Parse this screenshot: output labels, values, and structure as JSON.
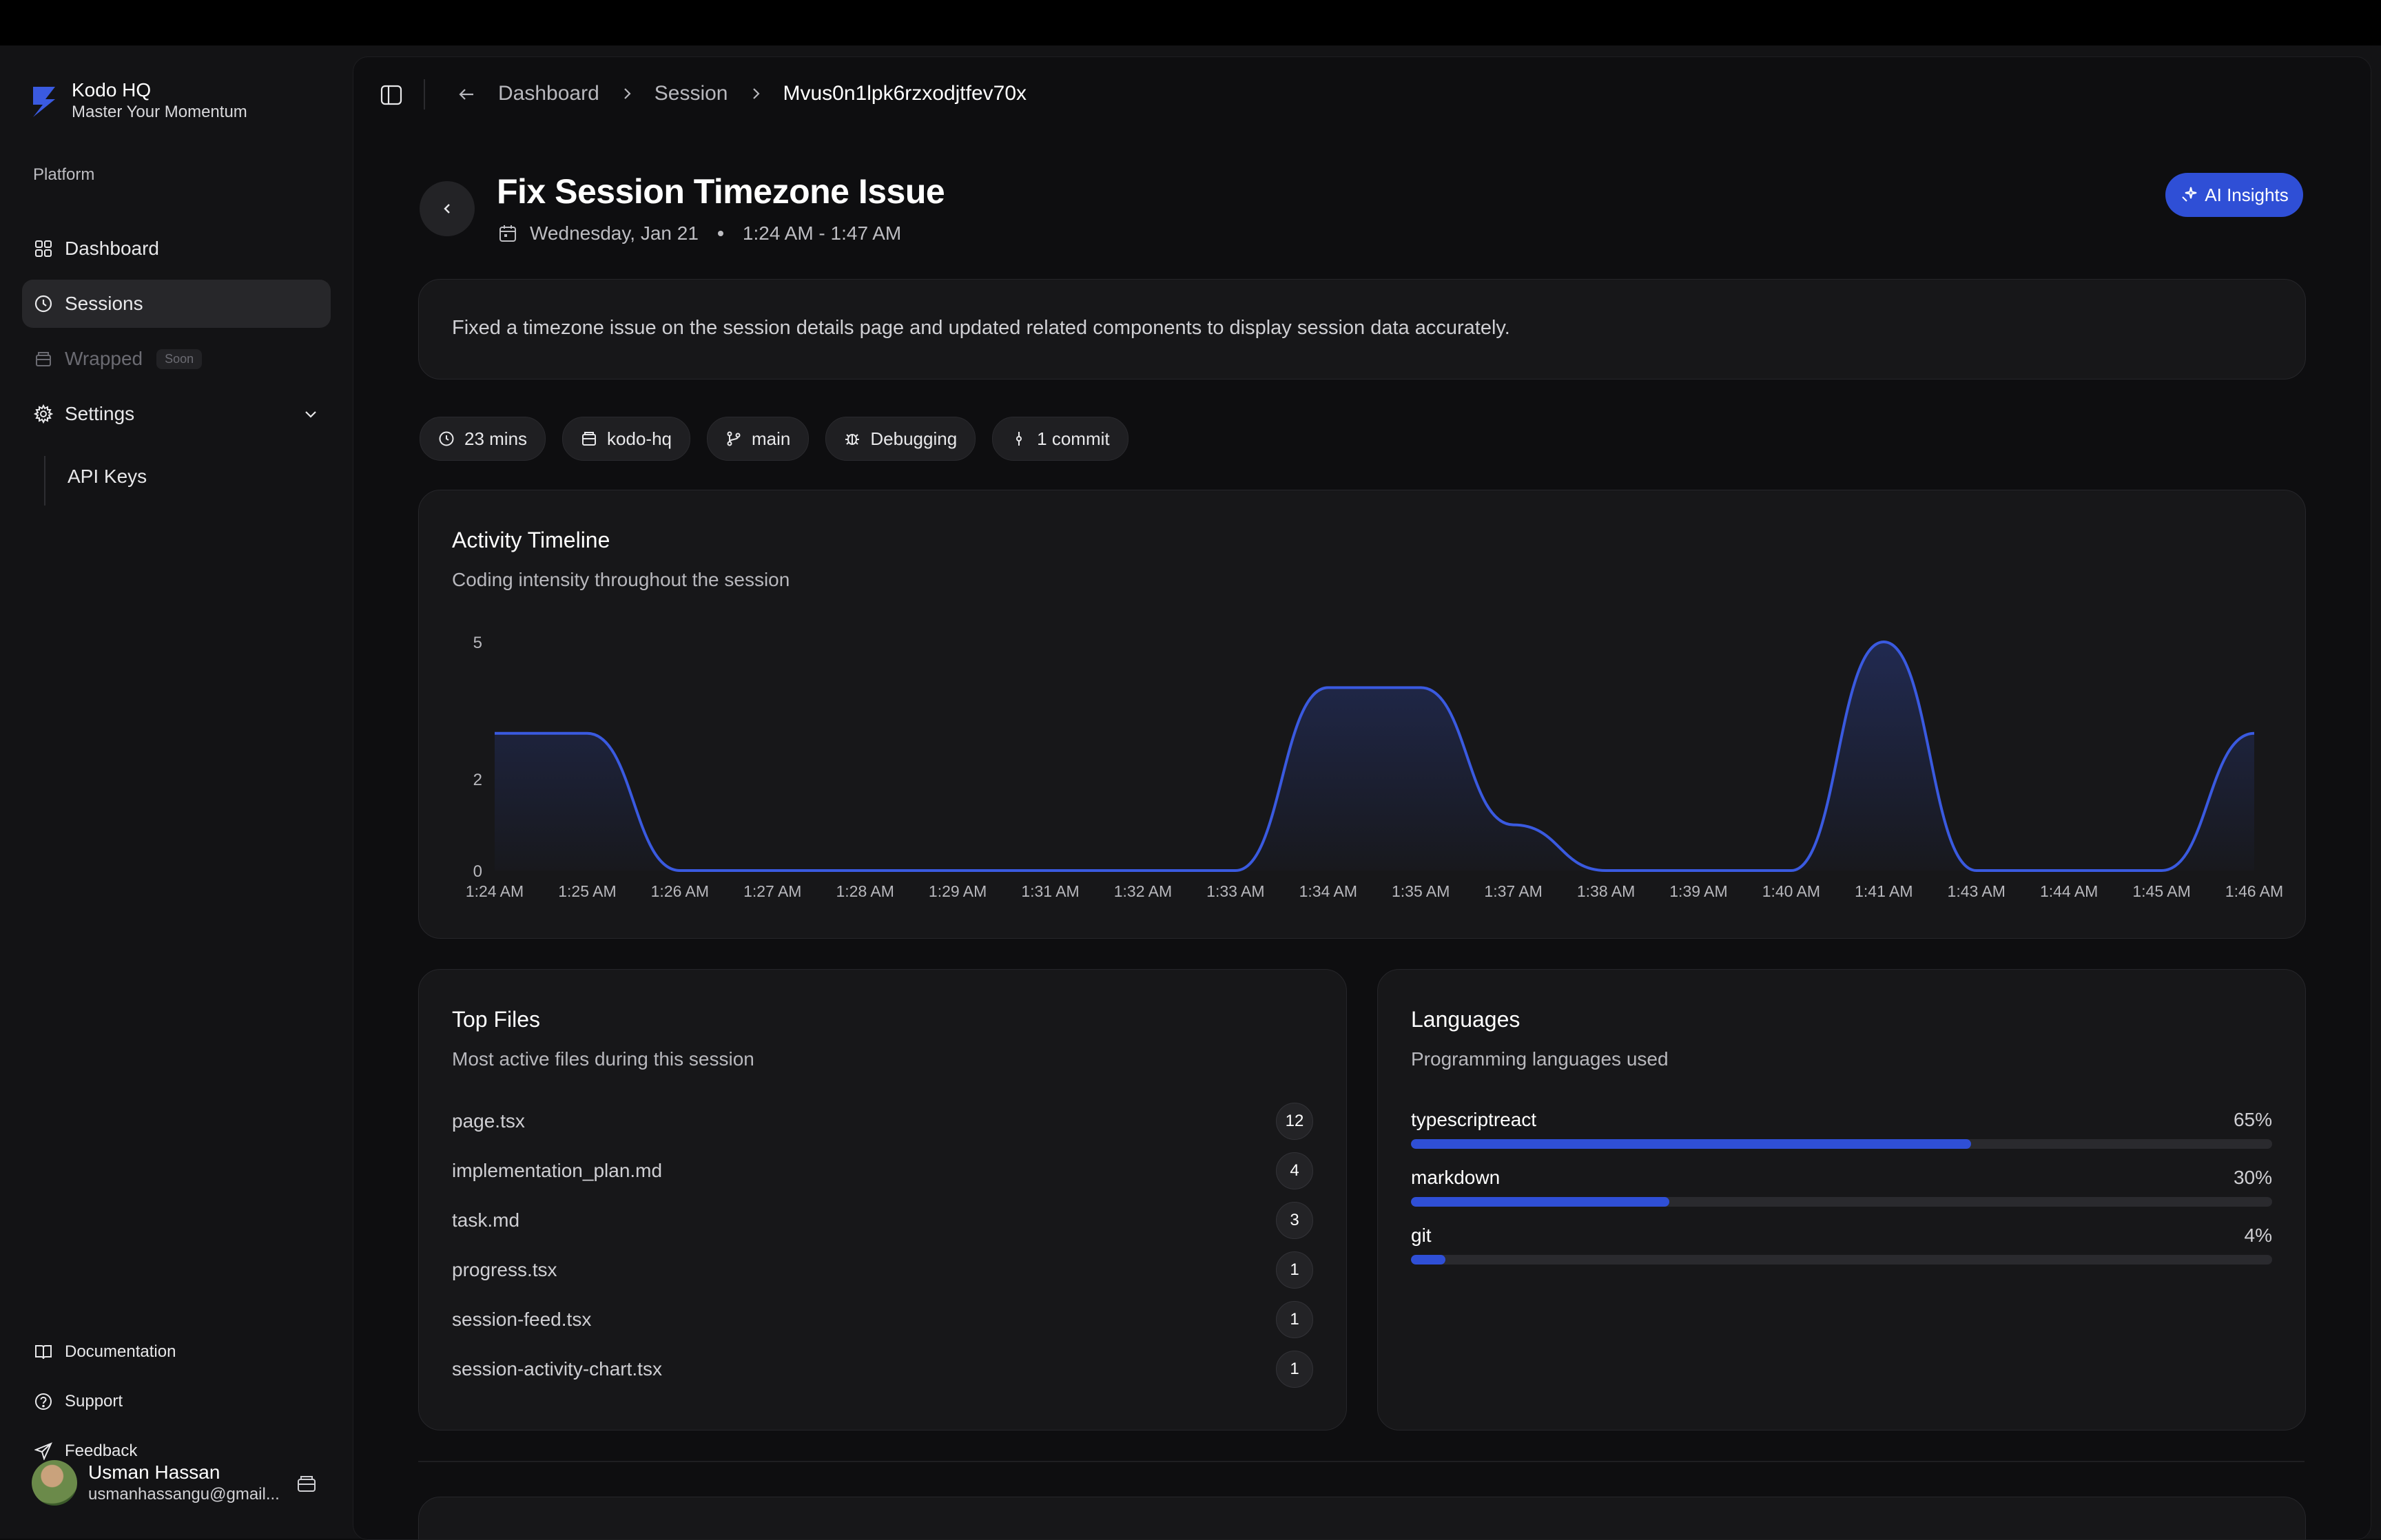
{
  "brand": {
    "name": "Kodo HQ",
    "tagline": "Master Your Momentum"
  },
  "sidebar": {
    "section_label": "Platform",
    "items": [
      {
        "label": "Dashboard",
        "icon": "grid-icon"
      },
      {
        "label": "Sessions",
        "icon": "clock-icon",
        "active": true
      },
      {
        "label": "Wrapped",
        "icon": "box-icon",
        "badge": "Soon",
        "disabled": true
      },
      {
        "label": "Settings",
        "icon": "gear-icon",
        "expanded": true
      }
    ],
    "sub_items": [
      {
        "label": "API Keys"
      }
    ],
    "footer": [
      {
        "label": "Documentation",
        "icon": "book-icon"
      },
      {
        "label": "Support",
        "icon": "help-circle-icon"
      },
      {
        "label": "Feedback",
        "icon": "send-icon"
      }
    ],
    "user": {
      "name": "Usman Hassan",
      "email": "usmanhassangu@gmail..."
    }
  },
  "breadcrumb": {
    "items": [
      "Dashboard",
      "Session",
      "Mvus0n1lpk6rzxodjtfev70x"
    ]
  },
  "session": {
    "title": "Fix Session Timezone Issue",
    "date": "Wednesday, Jan 21",
    "time_range": "1:24 AM - 1:47 AM",
    "ai_button": "AI Insights",
    "summary": "Fixed a timezone issue on the session details page and updated related components to display session data accurately.",
    "chips": [
      {
        "label": "23 mins",
        "icon": "clock-icon"
      },
      {
        "label": "kodo-hq",
        "icon": "repo-icon"
      },
      {
        "label": "main",
        "icon": "git-branch-icon"
      },
      {
        "label": "Debugging",
        "icon": "bug-icon"
      },
      {
        "label": "1 commit",
        "icon": "git-commit-icon"
      }
    ]
  },
  "activity": {
    "title": "Activity Timeline",
    "subtitle": "Coding intensity throughout the session"
  },
  "chart_data": {
    "type": "area",
    "title": "Activity Timeline",
    "x": [
      "1:24 AM",
      "1:25 AM",
      "1:26 AM",
      "1:27 AM",
      "1:28 AM",
      "1:29 AM",
      "1:31 AM",
      "1:32 AM",
      "1:33 AM",
      "1:34 AM",
      "1:35 AM",
      "1:37 AM",
      "1:38 AM",
      "1:39 AM",
      "1:40 AM",
      "1:41 AM",
      "1:43 AM",
      "1:44 AM",
      "1:45 AM",
      "1:46 AM"
    ],
    "values": [
      3,
      3,
      0,
      0,
      0,
      0,
      0,
      0,
      0,
      4,
      4,
      1,
      0,
      0,
      0,
      5,
      0,
      0,
      0,
      3
    ],
    "y_ticks": [
      0,
      2,
      5
    ],
    "ylim": [
      0,
      5
    ],
    "grid": false,
    "color": "#3a5ae0"
  },
  "files": {
    "title": "Top Files",
    "subtitle": "Most active files during this session",
    "items": [
      {
        "name": "page.tsx",
        "count": "12"
      },
      {
        "name": "implementation_plan.md",
        "count": "4"
      },
      {
        "name": "task.md",
        "count": "3"
      },
      {
        "name": "progress.tsx",
        "count": "1"
      },
      {
        "name": "session-feed.tsx",
        "count": "1"
      },
      {
        "name": "session-activity-chart.tsx",
        "count": "1"
      }
    ]
  },
  "languages": {
    "title": "Languages",
    "subtitle": "Programming languages used",
    "items": [
      {
        "name": "typescriptreact",
        "percent": 65,
        "label": "65%"
      },
      {
        "name": "markdown",
        "percent": 30,
        "label": "30%"
      },
      {
        "name": "git",
        "percent": 4,
        "label": "4%"
      }
    ]
  },
  "colors": {
    "accent": "#2f4fd6",
    "background": "#0e0e10",
    "card": "#171719"
  }
}
